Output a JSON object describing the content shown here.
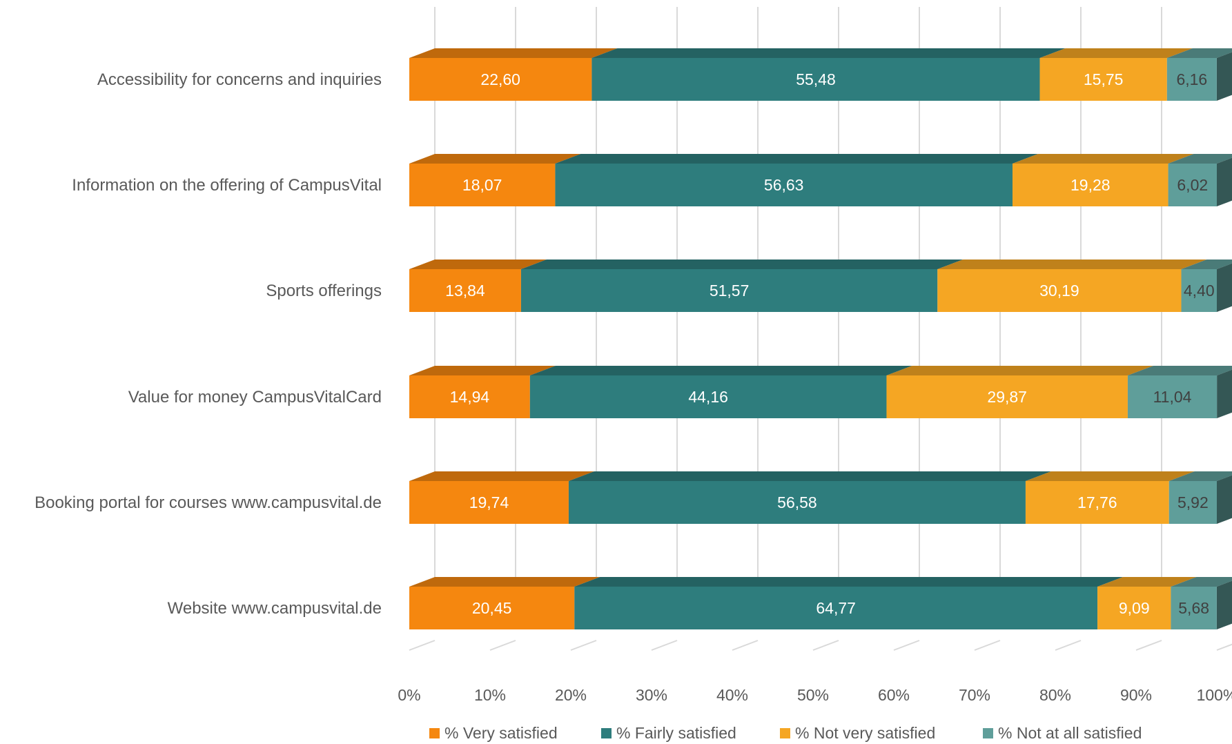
{
  "chart_data": {
    "type": "bar",
    "orientation": "horizontal",
    "stacked": "percent",
    "three_d": true,
    "title": "",
    "xlabel": "",
    "ylabel": "",
    "xlim": [
      0,
      100
    ],
    "x_ticks": [
      "0%",
      "10%",
      "20%",
      "30%",
      "40%",
      "50%",
      "60%",
      "70%",
      "80%",
      "90%",
      "100%"
    ],
    "grid": true,
    "legend_position": "bottom",
    "categories": [
      "Accessibility for concerns and inquiries",
      "Information on the offering of CampusVital",
      "Sports offerings",
      "Value for money CampusVitalCard",
      "Booking portal for courses www.campusvital.de",
      "Website www.campusvital.de"
    ],
    "series": [
      {
        "name": "% Very satisfied",
        "color": "#F5870F",
        "values": [
          22.6,
          18.07,
          13.84,
          14.94,
          19.74,
          20.45
        ],
        "labels": [
          "22,60",
          "18,07",
          "13,84",
          "14,94",
          "19,74",
          "20,45"
        ]
      },
      {
        "name": "% Fairly satisfied",
        "color": "#2E7D7D",
        "values": [
          55.48,
          56.63,
          51.57,
          44.16,
          56.58,
          64.77
        ],
        "labels": [
          "55,48",
          "56,63",
          "51,57",
          "44,16",
          "56,58",
          "64,77"
        ]
      },
      {
        "name": "% Not very satisfied",
        "color": "#F5A623",
        "values": [
          15.75,
          19.28,
          30.19,
          29.87,
          17.76,
          9.09
        ],
        "labels": [
          "15,75",
          "19,28",
          "30,19",
          "29,87",
          "17,76",
          "9,09"
        ]
      },
      {
        "name": "% Not at all satisfied",
        "color": "#5F9E9A",
        "values": [
          6.16,
          6.02,
          4.4,
          11.04,
          5.92,
          5.68
        ],
        "labels": [
          "6,16",
          "6,02",
          "4,40",
          "11,04",
          "5,92",
          "5,68"
        ]
      }
    ]
  }
}
